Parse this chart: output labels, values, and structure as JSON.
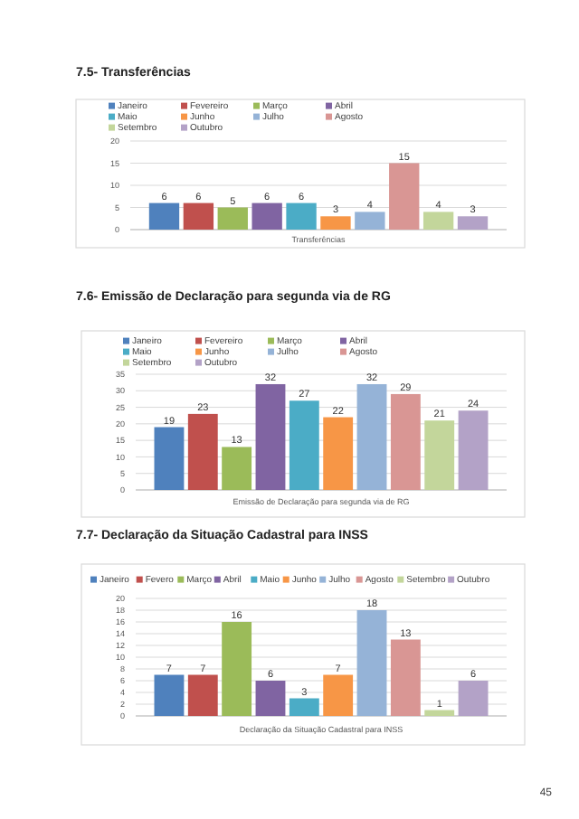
{
  "chart_data": [
    {
      "type": "bar",
      "title": "7.5- Transferências",
      "categories": [
        "Transferências"
      ],
      "ylim": [
        0,
        20
      ],
      "yticks": [
        0,
        5,
        10,
        15,
        20
      ],
      "grid": "y",
      "legend": "top",
      "data_labels": true,
      "series": [
        {
          "name": "Janeiro",
          "color": "#4f81bd",
          "values": [
            6
          ]
        },
        {
          "name": "Fevereiro",
          "color": "#c0504d",
          "values": [
            6
          ]
        },
        {
          "name": "Março",
          "color": "#9bbb59",
          "values": [
            5
          ]
        },
        {
          "name": "Abril",
          "color": "#8064a2",
          "values": [
            6
          ]
        },
        {
          "name": "Maio",
          "color": "#4bacc6",
          "values": [
            6
          ]
        },
        {
          "name": "Junho",
          "color": "#f79646",
          "values": [
            3
          ]
        },
        {
          "name": "Julho",
          "color": "#95b3d7",
          "values": [
            4
          ]
        },
        {
          "name": "Agosto",
          "color": "#d99694",
          "values": [
            15
          ]
        },
        {
          "name": "Setembro",
          "color": "#c3d69b",
          "values": [
            4
          ]
        },
        {
          "name": "Outubro",
          "color": "#b3a2c7",
          "values": [
            3
          ]
        }
      ]
    },
    {
      "type": "bar",
      "title": "7.6- Emissão de Declaração para segunda via de RG",
      "categories": [
        "Emissão de Declaração para segunda via de RG"
      ],
      "ylim": [
        0,
        35
      ],
      "yticks": [
        0,
        5,
        10,
        15,
        20,
        25,
        30,
        35
      ],
      "grid": "y",
      "legend": "top left",
      "data_labels": true,
      "series": [
        {
          "name": "Janeiro",
          "color": "#4f81bd",
          "values": [
            19
          ]
        },
        {
          "name": "Fevereiro",
          "color": "#c0504d",
          "values": [
            23
          ]
        },
        {
          "name": "Março",
          "color": "#9bbb59",
          "values": [
            13
          ]
        },
        {
          "name": "Abril",
          "color": "#8064a2",
          "values": [
            32
          ]
        },
        {
          "name": "Maio",
          "color": "#4bacc6",
          "values": [
            27
          ]
        },
        {
          "name": "Junho",
          "color": "#f79646",
          "values": [
            22
          ]
        },
        {
          "name": "Julho",
          "color": "#95b3d7",
          "values": [
            32
          ]
        },
        {
          "name": "Agosto",
          "color": "#d99694",
          "values": [
            29
          ]
        },
        {
          "name": "Setembro",
          "color": "#c3d69b",
          "values": [
            21
          ]
        },
        {
          "name": "Outubro",
          "color": "#b3a2c7",
          "values": [
            24
          ]
        }
      ]
    },
    {
      "type": "bar",
      "title": "7.7- Declaração da Situação Cadastral para INSS",
      "categories": [
        "Declaração da Situação Cadastral para INSS"
      ],
      "ylim": [
        0,
        20
      ],
      "yticks": [
        0,
        2,
        4,
        6,
        8,
        10,
        12,
        14,
        16,
        18,
        20
      ],
      "grid": "y",
      "legend": "top",
      "data_labels": true,
      "annotations": [
        "45"
      ],
      "series": [
        {
          "name": "Janeiro",
          "color": "#4f81bd",
          "values": [
            7
          ]
        },
        {
          "name": "Fevero",
          "color": "#c0504d",
          "values": [
            7
          ]
        },
        {
          "name": "Março",
          "color": "#9bbb59",
          "values": [
            16
          ]
        },
        {
          "name": "Abril",
          "color": "#8064a2",
          "values": [
            6
          ]
        },
        {
          "name": "Maio",
          "color": "#4bacc6",
          "values": [
            3
          ]
        },
        {
          "name": "Junho",
          "color": "#f79646",
          "values": [
            7
          ]
        },
        {
          "name": "Julho",
          "color": "#95b3d7",
          "values": [
            18
          ]
        },
        {
          "name": "Agosto",
          "color": "#d99694",
          "values": [
            13
          ]
        },
        {
          "name": "Setembro",
          "color": "#c3d69b",
          "values": [
            1
          ]
        },
        {
          "name": "Outubro",
          "color": "#b3a2c7",
          "values": [
            6
          ]
        }
      ]
    }
  ]
}
